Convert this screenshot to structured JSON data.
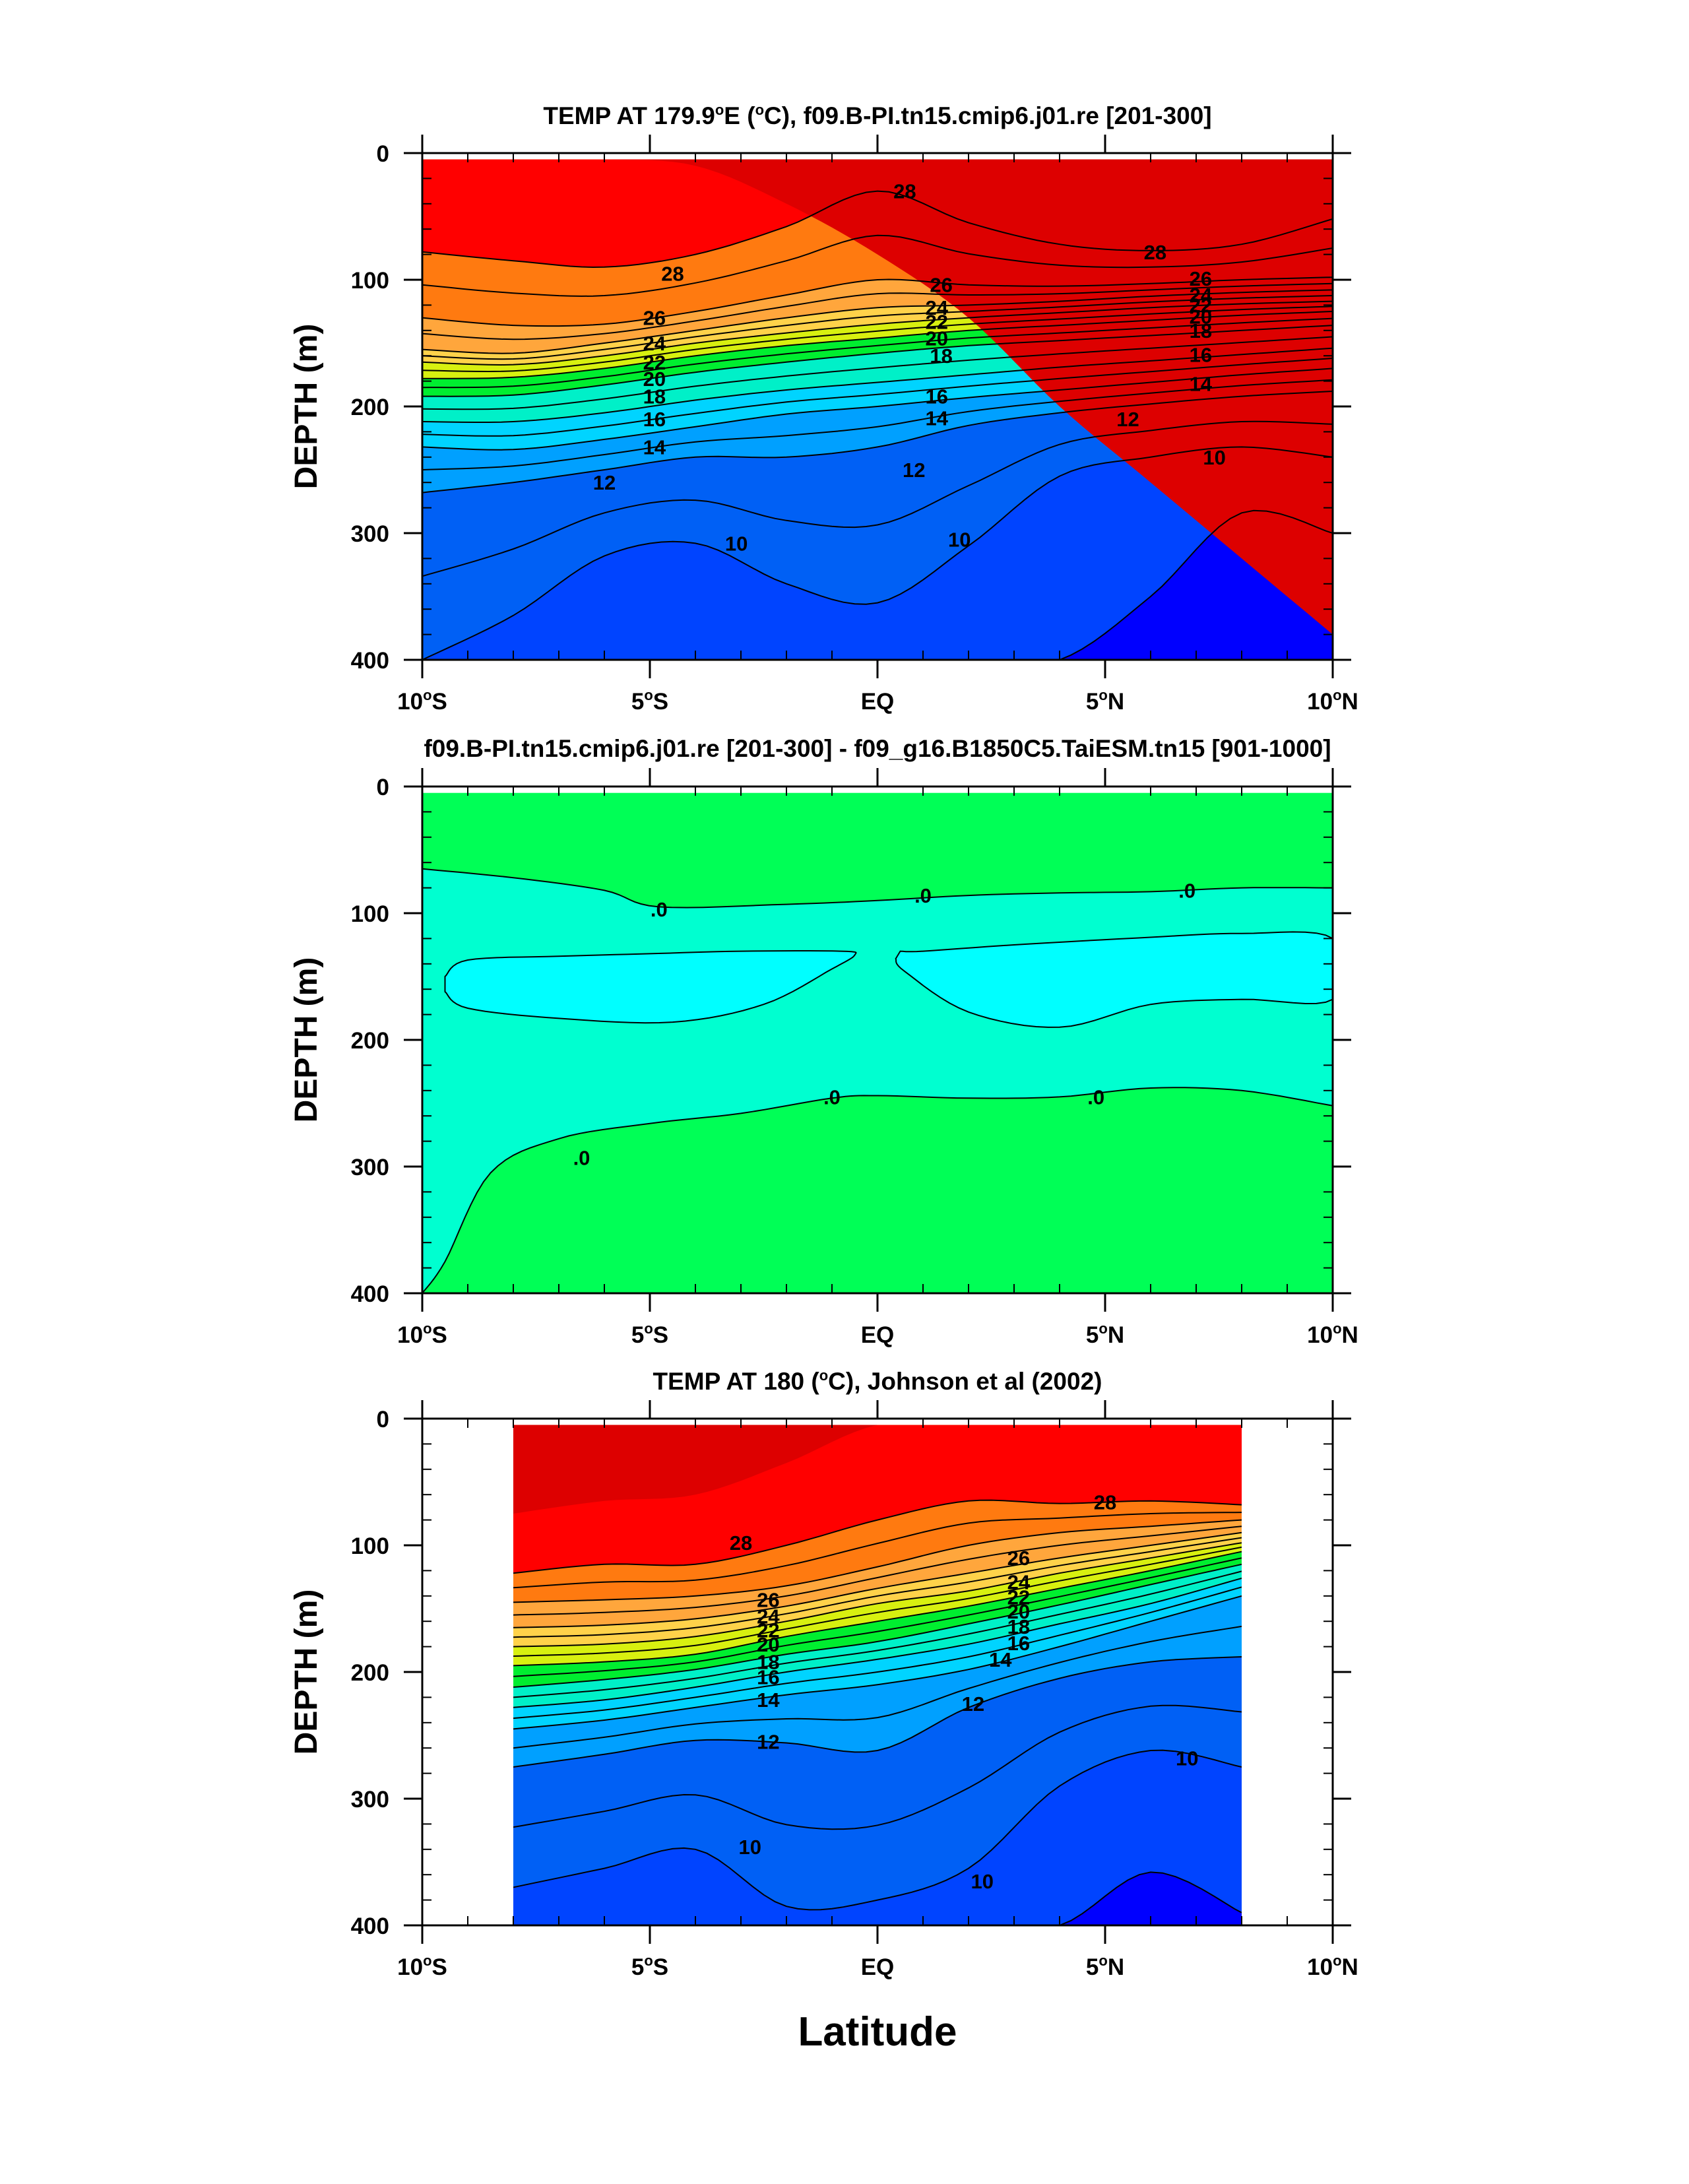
{
  "figure": {
    "xlabel": "Latitude"
  },
  "chart_data": [
    {
      "type": "contour",
      "title": "TEMP AT 179.9°E (°C), f09.B-PI.tn15.cmip6.j01.re [201-300]",
      "ylabel": "DEPTH (m)",
      "xlim": [
        -10,
        10
      ],
      "ylim": [
        400,
        0
      ],
      "y_reversed": true,
      "x_ticks": [
        -10,
        -5,
        0,
        5,
        10
      ],
      "x_tick_labels": [
        "10°S",
        "5°S",
        "EQ",
        "5°N",
        "10°N"
      ],
      "y_ticks": [
        0,
        100,
        200,
        300,
        400
      ],
      "y_tick_labels": [
        "0",
        "100",
        "200",
        "300",
        "400"
      ],
      "data_extent": {
        "lat": [
          -10,
          10
        ],
        "depth": [
          5,
          400
        ]
      },
      "levels": [
        8,
        9,
        10,
        11,
        12,
        13,
        14,
        15,
        16,
        17,
        18,
        19,
        20,
        21,
        22,
        23,
        24,
        25,
        26,
        27,
        28,
        29
      ],
      "isotherm_depths": {
        "lat": [
          -10,
          -8,
          -6,
          -4,
          -2,
          0,
          2,
          4,
          6,
          8,
          10
        ],
        "rows": [
          {
            "level": 29,
            "depth": [
              5,
              5,
              5,
              10,
              40,
              80,
              130,
              200,
              260,
              320,
              380
            ]
          },
          {
            "level": 28,
            "depth": [
              78,
              85,
              90,
              80,
              58,
              30,
              55,
              72,
              77,
              72,
              52
            ]
          },
          {
            "level": 26,
            "depth": [
              130,
              136,
              135,
              125,
              112,
              100,
              104,
              105,
              103,
              100,
              98
            ]
          },
          {
            "level": 24,
            "depth": [
              155,
              158,
              150,
              140,
              130,
              122,
              120,
              117,
              113,
              110,
              108
            ]
          },
          {
            "level": 22,
            "depth": [
              165,
              167,
              160,
              150,
              142,
              135,
              130,
              126,
              122,
              119,
              117
            ]
          },
          {
            "level": 20,
            "depth": [
              178,
              177,
              170,
              160,
              152,
              146,
              140,
              136,
              132,
              128,
              125
            ]
          },
          {
            "level": 18,
            "depth": [
              192,
              191,
              183,
              173,
              165,
              158,
              152,
              148,
              144,
              140,
              136
            ]
          },
          {
            "level": 16,
            "depth": [
              212,
              212,
              205,
              195,
              187,
              181,
              175,
              169,
              164,
              159,
              154
            ]
          },
          {
            "level": 14,
            "depth": [
              232,
              234,
              226,
              216,
              206,
              200,
              193,
              187,
              181,
              175,
              170
            ]
          },
          {
            "level": 12,
            "depth": [
              268,
              260,
              250,
              240,
              240,
              232,
              215,
              205,
              198,
              192,
              188
            ]
          },
          {
            "level": 10,
            "depth": [
              400,
              365,
              318,
              308,
              340,
              355,
              310,
              255,
              240,
              232,
              240
            ]
          },
          {
            "level": 9,
            "depth": [
              400,
              400,
              400,
              400,
              400,
              400,
              400,
              400,
              350,
              284,
              300
            ]
          }
        ]
      },
      "contour_labels": [
        {
          "text": "28",
          "lat": -4.5,
          "depth": 95
        },
        {
          "text": "28",
          "lat": 0.6,
          "depth": 30
        },
        {
          "text": "28",
          "lat": 6.1,
          "depth": 78
        },
        {
          "text": "26",
          "lat": -4.9,
          "depth": 130
        },
        {
          "text": "26",
          "lat": 1.4,
          "depth": 104
        },
        {
          "text": "26",
          "lat": 7.1,
          "depth": 99
        },
        {
          "text": "24",
          "lat": -4.9,
          "depth": 150
        },
        {
          "text": "24",
          "lat": 1.3,
          "depth": 122
        },
        {
          "text": "24",
          "lat": 7.1,
          "depth": 112
        },
        {
          "text": "22",
          "lat": -4.9,
          "depth": 165
        },
        {
          "text": "22",
          "lat": 1.3,
          "depth": 133
        },
        {
          "text": "22",
          "lat": 7.1,
          "depth": 120
        },
        {
          "text": "20",
          "lat": -4.9,
          "depth": 178
        },
        {
          "text": "20",
          "lat": 1.3,
          "depth": 146
        },
        {
          "text": "20",
          "lat": 7.1,
          "depth": 129
        },
        {
          "text": "18",
          "lat": -4.9,
          "depth": 192
        },
        {
          "text": "18",
          "lat": 1.4,
          "depth": 160
        },
        {
          "text": "18",
          "lat": 7.1,
          "depth": 140
        },
        {
          "text": "16",
          "lat": -4.9,
          "depth": 210
        },
        {
          "text": "16",
          "lat": 1.3,
          "depth": 192
        },
        {
          "text": "16",
          "lat": 7.1,
          "depth": 159
        },
        {
          "text": "14",
          "lat": -4.9,
          "depth": 232
        },
        {
          "text": "14",
          "lat": 1.3,
          "depth": 209
        },
        {
          "text": "14",
          "lat": 7.1,
          "depth": 182
        },
        {
          "text": "12",
          "lat": -6.0,
          "depth": 260
        },
        {
          "text": "12",
          "lat": 0.8,
          "depth": 250
        },
        {
          "text": "12",
          "lat": 5.5,
          "depth": 210
        },
        {
          "text": "10",
          "lat": -3.1,
          "depth": 308
        },
        {
          "text": "10",
          "lat": 1.8,
          "depth": 305
        },
        {
          "text": "10",
          "lat": 7.4,
          "depth": 240
        }
      ]
    },
    {
      "type": "contour",
      "title": "f09.B-PI.tn15.cmip6.j01.re [201-300] - f09_g16.B1850C5.TaiESM.tn15 [901-1000]",
      "ylabel": "DEPTH (m)",
      "xlim": [
        -10,
        10
      ],
      "ylim": [
        400,
        0
      ],
      "y_reversed": true,
      "x_ticks": [
        -10,
        -5,
        0,
        5,
        10
      ],
      "x_tick_labels": [
        "10°S",
        "5°S",
        "EQ",
        "5°N",
        "10°N"
      ],
      "y_ticks": [
        0,
        100,
        200,
        300,
        400
      ],
      "y_tick_labels": [
        "0",
        "100",
        "200",
        "300",
        "400"
      ],
      "data_extent": {
        "lat": [
          -10,
          10
        ],
        "depth": [
          5,
          400
        ]
      },
      "regions": [
        {
          "value_sign": "positive",
          "color": "#00ff56",
          "where": "0-70 m and below 250 m"
        },
        {
          "value_sign": "negative",
          "color": "#00ffd0",
          "where": "70-250 m"
        },
        {
          "value_sign": "more negative",
          "color": "#00ffff",
          "where": "two lobes 130-190 m"
        }
      ],
      "contour_labels": [
        {
          "text": ".0",
          "lat": -4.8,
          "depth": 97
        },
        {
          "text": ".0",
          "lat": 1.0,
          "depth": 86
        },
        {
          "text": ".0",
          "lat": 6.8,
          "depth": 82
        },
        {
          "text": ".0",
          "lat": -1.0,
          "depth": 245
        },
        {
          "text": ".0",
          "lat": 4.8,
          "depth": 245
        },
        {
          "text": ".0",
          "lat": -6.5,
          "depth": 293
        }
      ]
    },
    {
      "type": "contour",
      "title": "TEMP AT 180 (°C), Johnson et al (2002)",
      "ylabel": "DEPTH (m)",
      "xlim": [
        -10,
        10
      ],
      "ylim": [
        400,
        0
      ],
      "y_reversed": true,
      "x_ticks": [
        -10,
        -5,
        0,
        5,
        10
      ],
      "x_tick_labels": [
        "10°S",
        "5°S",
        "EQ",
        "5°N",
        "10°N"
      ],
      "y_ticks": [
        0,
        100,
        200,
        300,
        400
      ],
      "y_tick_labels": [
        "0",
        "100",
        "200",
        "300",
        "400"
      ],
      "data_extent": {
        "lat": [
          -8,
          8
        ],
        "depth": [
          5,
          400
        ]
      },
      "levels": [
        8,
        9,
        10,
        11,
        12,
        13,
        14,
        15,
        16,
        17,
        18,
        19,
        20,
        21,
        22,
        23,
        24,
        25,
        26,
        27,
        28,
        29
      ],
      "isotherm_depths": {
        "lat": [
          -8,
          -6,
          -4,
          -2,
          0,
          2,
          4,
          6,
          8
        ],
        "rows": [
          {
            "level": 29,
            "depth": [
              75,
              65,
              60,
              35,
              5,
              5,
              5,
              5,
              5
            ]
          },
          {
            "level": 28,
            "depth": [
              122,
              115,
              115,
              100,
              80,
              65,
              67,
              65,
              68
            ]
          },
          {
            "level": 26,
            "depth": [
              145,
              143,
              140,
              132,
              117,
              100,
              90,
              85,
              80
            ]
          },
          {
            "level": 24,
            "depth": [
              165,
              163,
              158,
              148,
              134,
              122,
              110,
              100,
              90
            ]
          },
          {
            "level": 22,
            "depth": [
              180,
              178,
              172,
              160,
              146,
              136,
              122,
              110,
              98
            ]
          },
          {
            "level": 20,
            "depth": [
              195,
              192,
              186,
              172,
              160,
              148,
              134,
              120,
              105
            ]
          },
          {
            "level": 18,
            "depth": [
              212,
              206,
              198,
              186,
              176,
              162,
              147,
              131,
              115
            ]
          },
          {
            "level": 16,
            "depth": [
              228,
              222,
              212,
              200,
              190,
              178,
              162,
              146,
              126
            ]
          },
          {
            "level": 14,
            "depth": [
              245,
              238,
              228,
              218,
              210,
              198,
              180,
              160,
              140
            ]
          },
          {
            "level": 12,
            "depth": [
              275,
              265,
              254,
              256,
              262,
              228,
              205,
              192,
              188
            ]
          },
          {
            "level": 10,
            "depth": [
              370,
              355,
              340,
              385,
              380,
              355,
              290,
              262,
              275
            ]
          },
          {
            "level": 9,
            "depth": [
              400,
              400,
              400,
              400,
              400,
              400,
              400,
              358,
              390
            ]
          }
        ]
      },
      "contour_labels": [
        {
          "text": "28",
          "lat": -3.0,
          "depth": 98
        },
        {
          "text": "28",
          "lat": 5.0,
          "depth": 66
        },
        {
          "text": "26",
          "lat": -2.4,
          "depth": 143
        },
        {
          "text": "24",
          "lat": -2.4,
          "depth": 156
        },
        {
          "text": "22",
          "lat": -2.4,
          "depth": 167
        },
        {
          "text": "20",
          "lat": -2.4,
          "depth": 178
        },
        {
          "text": "18",
          "lat": -2.4,
          "depth": 192
        },
        {
          "text": "16",
          "lat": -2.4,
          "depth": 204
        },
        {
          "text": "14",
          "lat": -2.4,
          "depth": 222
        },
        {
          "text": "12",
          "lat": -2.4,
          "depth": 255
        },
        {
          "text": "26",
          "lat": 3.1,
          "depth": 110
        },
        {
          "text": "24",
          "lat": 3.1,
          "depth": 129
        },
        {
          "text": "22",
          "lat": 3.1,
          "depth": 141
        },
        {
          "text": "20",
          "lat": 3.1,
          "depth": 152
        },
        {
          "text": "18",
          "lat": 3.1,
          "depth": 164
        },
        {
          "text": "16",
          "lat": 3.1,
          "depth": 177
        },
        {
          "text": "14",
          "lat": 2.7,
          "depth": 190
        },
        {
          "text": "12",
          "lat": 2.1,
          "depth": 225
        },
        {
          "text": "10",
          "lat": -2.8,
          "depth": 338
        },
        {
          "text": "10",
          "lat": 2.3,
          "depth": 365
        },
        {
          "text": "10",
          "lat": 6.8,
          "depth": 268
        }
      ]
    }
  ],
  "colormap": {
    "8": "#0000ff",
    "9": "#0044ff",
    "10": "#0060f5",
    "11": "#0080ff",
    "12": "#00a0ff",
    "13": "#00bcff",
    "14": "#00d4ff",
    "15": "#20e8ff",
    "16": "#00f0c8",
    "17": "#00ff80",
    "18": "#00ee30",
    "19": "#80f020",
    "20": "#d8f010",
    "21": "#ffff00",
    "22": "#ffd24a",
    "23": "#ffb84a",
    "24": "#ffa63c",
    "25": "#ff9022",
    "26": "#ff7a10",
    "27": "#ff5500",
    "28": "#ff0000",
    "29": "#dd0000"
  }
}
